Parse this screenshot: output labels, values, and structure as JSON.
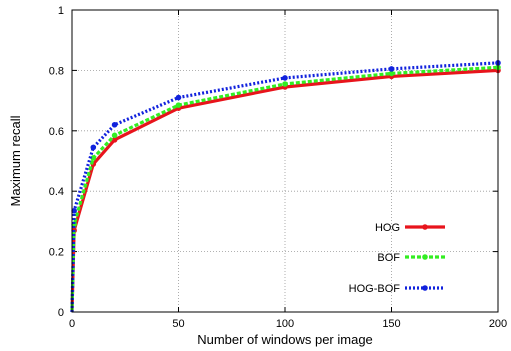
{
  "chart_data": {
    "type": "line",
    "title": "",
    "xlabel": "Number of windows per image",
    "ylabel": "Maximum recall",
    "xlim": [
      0,
      200
    ],
    "ylim": [
      0,
      1
    ],
    "xticks": [
      0,
      50,
      100,
      150,
      200
    ],
    "yticks": [
      0,
      0.2,
      0.4,
      0.6,
      0.8,
      1
    ],
    "ytick_labels": [
      "0",
      "0.2",
      "0.4",
      "0.6",
      "0.8",
      "1"
    ],
    "grid": true,
    "legend_position": "bottom-right",
    "x": [
      0,
      1,
      10,
      20,
      50,
      100,
      150,
      200
    ],
    "series": [
      {
        "name": "HOG",
        "color": "#e8141c",
        "style": "solid",
        "values": [
          0.0,
          0.27,
          0.49,
          0.57,
          0.675,
          0.745,
          0.78,
          0.8
        ]
      },
      {
        "name": "BOF",
        "color": "#33ee22",
        "style": "dashed",
        "values": [
          0.0,
          0.29,
          0.51,
          0.585,
          0.685,
          0.755,
          0.79,
          0.81
        ]
      },
      {
        "name": "HOG-BOF",
        "color": "#1122dd",
        "style": "dotted",
        "values": [
          0.0,
          0.335,
          0.545,
          0.62,
          0.71,
          0.775,
          0.805,
          0.825
        ]
      }
    ]
  }
}
